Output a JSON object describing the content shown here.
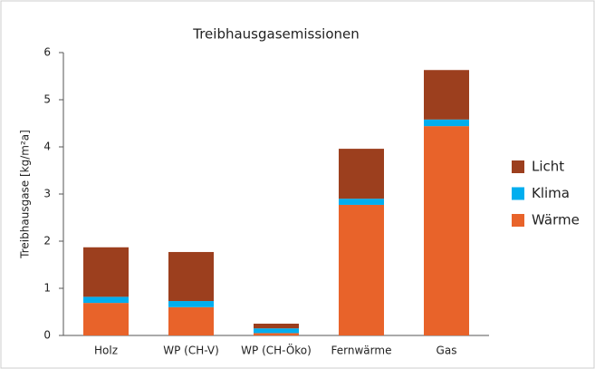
{
  "chart_data": {
    "type": "stacked_bar",
    "title": "Treibhausgasemissionen",
    "y_label": "Treibhausgase [kg/m²a]",
    "categories": [
      "Holz",
      "WP (CH-V)",
      "WP (CH-Öko)",
      "Fernwärme",
      "Gas"
    ],
    "series": [
      {
        "name": "Wärme",
        "color": "#e8632a",
        "values": [
          0.69,
          0.6,
          0.05,
          2.77,
          4.44
        ]
      },
      {
        "name": "Klima",
        "color": "#00aeef",
        "values": [
          0.13,
          0.13,
          0.1,
          0.13,
          0.14
        ]
      },
      {
        "name": "Licht",
        "color": "#9c3f1e",
        "values": [
          1.05,
          1.04,
          0.1,
          1.06,
          1.05
        ]
      }
    ],
    "ylim": [
      0,
      6
    ],
    "yticks": [
      0,
      1,
      2,
      3,
      4,
      5,
      6
    ],
    "grid": false,
    "legend": "right"
  }
}
